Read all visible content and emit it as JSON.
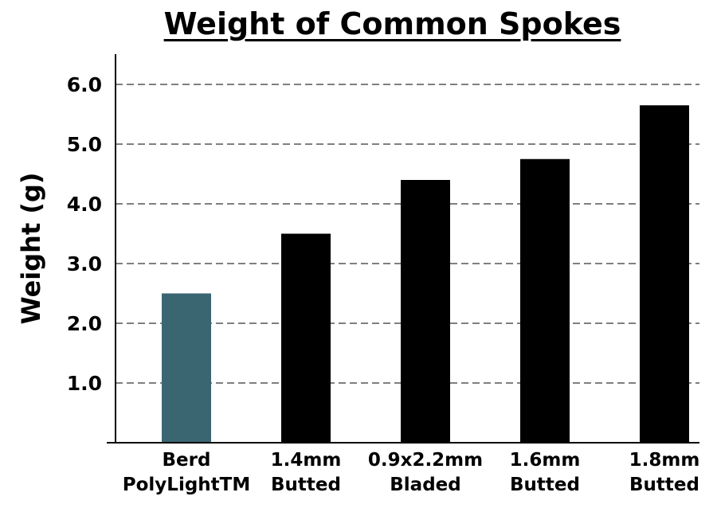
{
  "chart_data": {
    "type": "bar",
    "title": "Weight of Common Spokes",
    "xlabel": "",
    "ylabel": "Weight (g)",
    "ylim": [
      0,
      6.5
    ],
    "yticks": [
      "1.0",
      "2.0",
      "3.0",
      "4.0",
      "5.0",
      "6.0"
    ],
    "grid": "horizontal dashed",
    "categories": [
      [
        "Berd",
        "PolyLightTM"
      ],
      [
        "1.4mm",
        "Butted"
      ],
      [
        "0.9x2.2mm",
        "Bladed"
      ],
      [
        "1.6mm",
        "Butted"
      ],
      [
        "1.8mm",
        "Butted"
      ]
    ],
    "values": [
      2.5,
      3.5,
      4.4,
      4.75,
      5.65
    ],
    "colors": [
      "#3a6672",
      "#000000",
      "#000000",
      "#000000",
      "#000000"
    ]
  }
}
